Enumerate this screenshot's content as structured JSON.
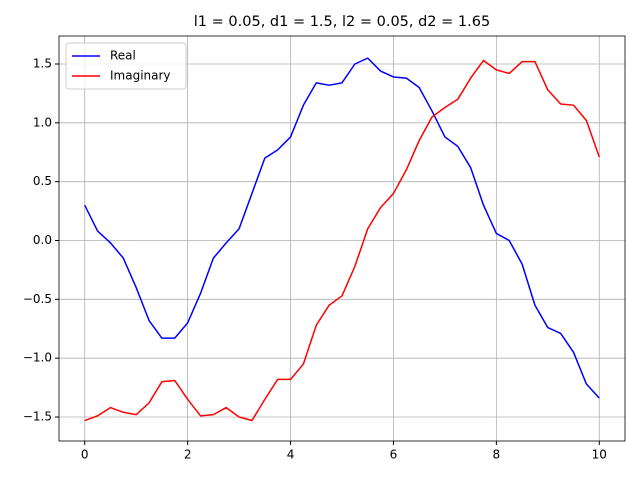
{
  "chart_data": {
    "type": "line",
    "title": "l1 = 0.05, d1 = 1.5, l2 = 0.05, d2 = 1.65",
    "x": [
      0,
      0.25,
      0.5,
      0.75,
      1,
      1.25,
      1.5,
      1.75,
      2,
      2.25,
      2.5,
      2.75,
      3,
      3.25,
      3.5,
      3.75,
      4,
      4.25,
      4.5,
      4.75,
      5,
      5.25,
      5.5,
      5.75,
      6,
      6.25,
      6.5,
      6.75,
      7,
      7.25,
      7.5,
      7.75,
      8,
      8.25,
      8.5,
      8.75,
      9,
      9.25,
      9.5,
      9.75,
      10
    ],
    "series": [
      {
        "name": "Real",
        "color": "#0000ff",
        "values": [
          0.3,
          0.08,
          -0.02,
          -0.15,
          -0.4,
          -0.68,
          -0.83,
          -0.83,
          -0.7,
          -0.45,
          -0.15,
          -0.02,
          0.1,
          0.4,
          0.7,
          0.77,
          0.88,
          1.15,
          1.34,
          1.32,
          1.34,
          1.5,
          1.55,
          1.44,
          1.39,
          1.38,
          1.3,
          1.1,
          0.88,
          0.8,
          0.62,
          0.3,
          0.06,
          0.0,
          -0.2,
          -0.55,
          -0.74,
          -0.79,
          -0.95,
          -1.22,
          -1.34
        ]
      },
      {
        "name": "Imaginary",
        "color": "#ff0000",
        "values": [
          -1.53,
          -1.49,
          -1.42,
          -1.46,
          -1.48,
          -1.38,
          -1.2,
          -1.19,
          -1.35,
          -1.49,
          -1.48,
          -1.42,
          -1.5,
          -1.53,
          -1.35,
          -1.18,
          -1.18,
          -1.05,
          -0.72,
          -0.55,
          -0.47,
          -0.22,
          0.1,
          0.28,
          0.4,
          0.6,
          0.85,
          1.05,
          1.13,
          1.2,
          1.38,
          1.53,
          1.45,
          1.42,
          1.52,
          1.52,
          1.28,
          1.16,
          1.15,
          1.02,
          0.71
        ]
      }
    ],
    "xlim": [
      -0.5,
      10.5
    ],
    "xticks": [
      0,
      2,
      4,
      6,
      8,
      10
    ],
    "ylim": [
      -1.704,
      1.738
    ],
    "yticks": [
      {
        "value": -1.5,
        "label": "−1.5"
      },
      {
        "value": -1.0,
        "label": "−1.0"
      },
      {
        "value": -0.5,
        "label": "−0.5"
      },
      {
        "value": 0,
        "label": "0.0"
      },
      0.5,
      {
        "value": 1.0,
        "label": "1.0"
      },
      1.5
    ],
    "grid": true,
    "legend": "upper left"
  }
}
